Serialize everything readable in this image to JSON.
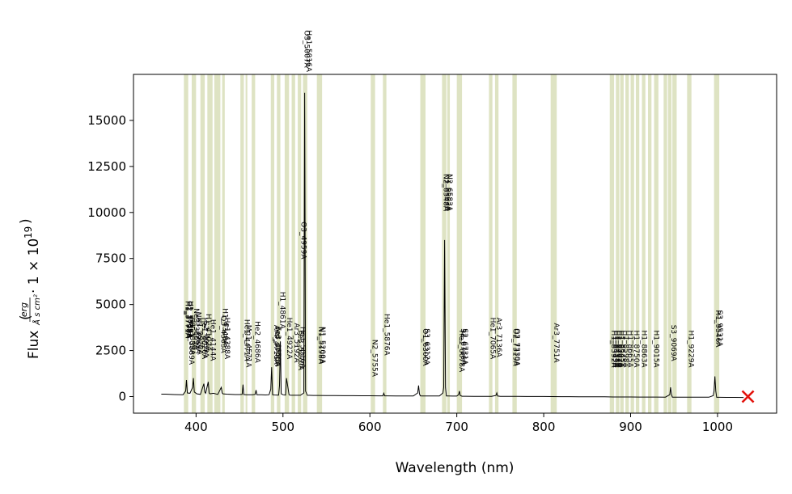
{
  "chart_data": {
    "type": "line",
    "title": "",
    "xlabel": "Wavelength (nm)",
    "ylabel_main": "Flux",
    "ylabel_frac_num": "erg",
    "ylabel_frac_den": "Å s cm²",
    "ylabel_factor": "· 1 × 10",
    "ylabel_exp": "19",
    "xlim": [
      328,
      1068
    ],
    "ylim": [
      -900,
      17500
    ],
    "xticks": [
      400,
      500,
      600,
      700,
      800,
      900,
      1000
    ],
    "yticks": [
      0,
      2500,
      5000,
      7500,
      10000,
      12500,
      15000
    ],
    "grid": false,
    "colors": {
      "band": "#b5c27a",
      "spectrum": "#000000",
      "marker": "#e3120b"
    },
    "band_regions": [
      [
        386,
        391
      ],
      [
        395,
        400
      ],
      [
        405,
        410
      ],
      [
        413,
        419
      ],
      [
        421,
        428
      ],
      [
        430,
        433
      ],
      [
        451,
        455
      ],
      [
        457,
        459
      ],
      [
        464,
        468
      ],
      [
        486,
        490
      ],
      [
        493,
        497
      ],
      [
        502,
        507
      ],
      [
        510,
        514
      ],
      [
        517,
        521
      ],
      [
        523,
        528
      ],
      [
        539,
        545
      ],
      [
        601,
        606
      ],
      [
        615,
        619
      ],
      [
        658,
        664
      ],
      [
        683,
        688
      ],
      [
        689,
        692
      ],
      [
        700,
        706
      ],
      [
        737,
        741
      ],
      [
        744,
        748
      ],
      [
        764,
        769
      ],
      [
        808,
        815
      ],
      [
        876,
        881
      ],
      [
        883,
        887
      ],
      [
        888,
        892
      ],
      [
        894,
        898
      ],
      [
        900,
        904
      ],
      [
        906,
        910
      ],
      [
        913,
        917
      ],
      [
        920,
        924
      ],
      [
        927,
        932
      ],
      [
        938,
        942
      ],
      [
        943,
        947
      ],
      [
        948,
        953
      ],
      [
        965,
        970
      ],
      [
        996,
        1002
      ]
    ],
    "spectrum": {
      "x": [
        360,
        365,
        370,
        375,
        380,
        385,
        388,
        389,
        390,
        393,
        396,
        397,
        398,
        401,
        405,
        409,
        410,
        411,
        414,
        415,
        416,
        420,
        425,
        429,
        430,
        431,
        435,
        440,
        445,
        450,
        453,
        454,
        455,
        458,
        460,
        465,
        468,
        469,
        470,
        475,
        480,
        484,
        486,
        487,
        488,
        490,
        495,
        496,
        497,
        498,
        500,
        503,
        504,
        505,
        507,
        508,
        510,
        520,
        524,
        525,
        526,
        528,
        535,
        540,
        550,
        560,
        570,
        580,
        590,
        600,
        610,
        615,
        616,
        617,
        620,
        630,
        640,
        650,
        655,
        656,
        657,
        658,
        660,
        670,
        680,
        684,
        685,
        686,
        687,
        688,
        690,
        695,
        700,
        702,
        703,
        704,
        706,
        710,
        720,
        730,
        740,
        745,
        746,
        747,
        750,
        760,
        770,
        780,
        790,
        800,
        810,
        820,
        830,
        840,
        850,
        860,
        870,
        880,
        890,
        900,
        910,
        920,
        930,
        940,
        945,
        946,
        947,
        948,
        950,
        960,
        970,
        980,
        990,
        995,
        996,
        997,
        998,
        999,
        1000,
        1010,
        1020,
        1030
      ],
      "y": [
        130,
        130,
        120,
        110,
        105,
        100,
        300,
        900,
        200,
        180,
        500,
        1000,
        250,
        150,
        120,
        700,
        250,
        180,
        800,
        200,
        150,
        180,
        120,
        500,
        200,
        150,
        130,
        120,
        110,
        110,
        120,
        650,
        110,
        100,
        100,
        95,
        120,
        350,
        100,
        95,
        90,
        100,
        400,
        1600,
        100,
        90,
        80,
        600,
        3000,
        150,
        100,
        80,
        1000,
        700,
        100,
        80,
        70,
        70,
        200,
        16500,
        300,
        70,
        60,
        60,
        55,
        55,
        50,
        50,
        45,
        45,
        40,
        40,
        180,
        40,
        40,
        35,
        35,
        30,
        200,
        600,
        150,
        40,
        30,
        30,
        30,
        200,
        500,
        8500,
        500,
        30,
        30,
        25,
        25,
        100,
        300,
        60,
        20,
        20,
        15,
        15,
        15,
        60,
        200,
        30,
        15,
        10,
        10,
        5,
        5,
        5,
        0,
        -5,
        -5,
        -10,
        -10,
        -15,
        -15,
        -20,
        -20,
        -20,
        -25,
        -25,
        -25,
        -30,
        100,
        500,
        120,
        -30,
        -30,
        -30,
        -35,
        -35,
        -35,
        50,
        300,
        1100,
        300,
        -40,
        -40,
        -45,
        -45,
        -50
      ]
    },
    "marker": {
      "x": 1035,
      "y": 0,
      "symbol": "×"
    },
    "line_labels": [
      {
        "text": "H1_3771A",
        "x": 388,
        "y": 5200
      },
      {
        "text": "H1_3798A",
        "x": 389,
        "y": 5200
      },
      {
        "text": "H1_3835A",
        "x": 391,
        "y": 5200
      },
      {
        "text": "O2_3726A",
        "x": 390,
        "y": 5200
      },
      {
        "text": "He1_3889A",
        "x": 392,
        "y": 4000
      },
      {
        "text": "H1_3889A",
        "x": 393,
        "y": 4300
      },
      {
        "text": "Ne3_3869A",
        "x": 398,
        "y": 4800
      },
      {
        "text": "Ne3_3968A",
        "x": 400,
        "y": 4600
      },
      {
        "text": "H1_3970A",
        "x": 402,
        "y": 4300
      },
      {
        "text": "He1_4026A",
        "x": 407,
        "y": 4300
      },
      {
        "text": "S2_4069A",
        "x": 409,
        "y": 4100
      },
      {
        "text": "H1_4102A",
        "x": 412,
        "y": 4500
      },
      {
        "text": "He1_4144A",
        "x": 417,
        "y": 4200
      },
      {
        "text": "H1_4340A",
        "x": 431,
        "y": 4800
      },
      {
        "text": "O3_4363A",
        "x": 429,
        "y": 4400
      },
      {
        "text": "He1_4388A",
        "x": 433,
        "y": 4300
      },
      {
        "text": "He1_4471A",
        "x": 456,
        "y": 4200
      },
      {
        "text": "Mg1_4571A",
        "x": 458,
        "y": 3900
      },
      {
        "text": "He2_4686A",
        "x": 468,
        "y": 4100
      },
      {
        "text": "Ar4_4711A",
        "x": 490,
        "y": 3900
      },
      {
        "text": "Ar4_4740A",
        "x": 491,
        "y": 3800
      },
      {
        "text": "Fe3_4658A",
        "x": 492,
        "y": 3800
      },
      {
        "text": "H1_4861A",
        "x": 497,
        "y": 5700
      },
      {
        "text": "He1_4922A",
        "x": 505,
        "y": 4300
      },
      {
        "text": "O3_4959A",
        "x": 521,
        "y": 9500
      },
      {
        "text": "Ar3_5192A",
        "x": 513,
        "y": 4000
      },
      {
        "text": "Fe3_5270A",
        "x": 518,
        "y": 3600
      },
      {
        "text": "He1_5016A",
        "x": 520,
        "y": 3800
      },
      {
        "text": "O3_5007A",
        "x": 525,
        "y": 19900
      },
      {
        "text": "He1_5016A",
        "x": 527,
        "y": 19900
      },
      {
        "text": "N1_5198A",
        "x": 541,
        "y": 3800
      },
      {
        "text": "N1_5200A",
        "x": 543,
        "y": 3800
      },
      {
        "text": "N2_5755A",
        "x": 603,
        "y": 3100
      },
      {
        "text": "He1_5876A",
        "x": 617,
        "y": 4500
      },
      {
        "text": "O1_6300A",
        "x": 661,
        "y": 3700
      },
      {
        "text": "S3_6312A",
        "x": 663,
        "y": 3700
      },
      {
        "text": "N2_6548A",
        "x": 685,
        "y": 12100
      },
      {
        "text": "H1_6563A",
        "x": 687,
        "y": 12100
      },
      {
        "text": "N2_6583A",
        "x": 689,
        "y": 12100
      },
      {
        "text": "He1_6678A",
        "x": 703,
        "y": 3600
      },
      {
        "text": "S2_6716A",
        "x": 705,
        "y": 3700
      },
      {
        "text": "S2_6731A",
        "x": 707,
        "y": 3700
      },
      {
        "text": "He1_7065A",
        "x": 739,
        "y": 4300
      },
      {
        "text": "Ar3_7136A",
        "x": 746,
        "y": 4300
      },
      {
        "text": "O2_7319A",
        "x": 765,
        "y": 3700
      },
      {
        "text": "O2_7330A",
        "x": 767,
        "y": 3700
      },
      {
        "text": "Ar3_7751A",
        "x": 812,
        "y": 4000
      },
      {
        "text": "H1_8392A",
        "x": 878,
        "y": 3600
      },
      {
        "text": "H1_8413A",
        "x": 880,
        "y": 3600
      },
      {
        "text": "H1_8438A",
        "x": 882,
        "y": 3600
      },
      {
        "text": "H1_8467A",
        "x": 884,
        "y": 3600
      },
      {
        "text": "H1_8502A",
        "x": 886,
        "y": 3600
      },
      {
        "text": "H1_8545A",
        "x": 888,
        "y": 3600
      },
      {
        "text": "H1_8598A",
        "x": 892,
        "y": 3600
      },
      {
        "text": "H1_8665A",
        "x": 897,
        "y": 3600
      },
      {
        "text": "H1_8750A",
        "x": 904,
        "y": 3600
      },
      {
        "text": "H1_8863A",
        "x": 913,
        "y": 3600
      },
      {
        "text": "H1_9015A",
        "x": 927,
        "y": 3600
      },
      {
        "text": "S3_9069A",
        "x": 947,
        "y": 3900
      },
      {
        "text": "H1_9229A",
        "x": 967,
        "y": 3600
      },
      {
        "text": "H1_9546A",
        "x": 998,
        "y": 4700
      },
      {
        "text": "S3_9531A",
        "x": 1000,
        "y": 4700
      }
    ]
  }
}
